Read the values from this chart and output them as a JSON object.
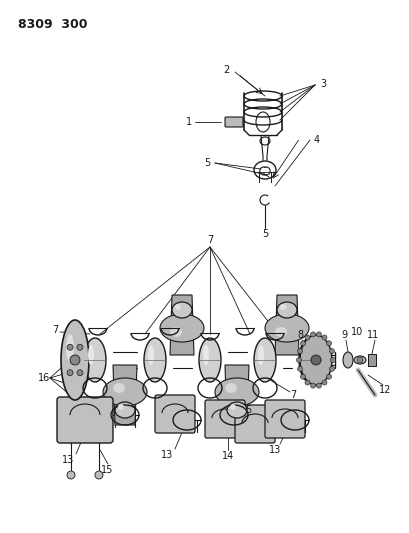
{
  "title": "8309 300",
  "bg": "#ffffff",
  "lc": "#1a1a1a",
  "fig_w": 4.1,
  "fig_h": 5.33,
  "dpi": 100
}
